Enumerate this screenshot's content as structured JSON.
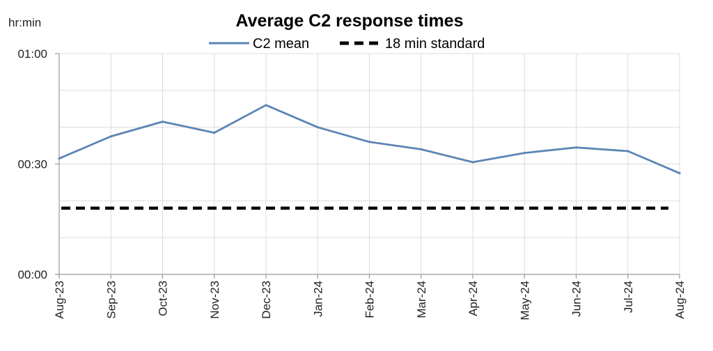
{
  "chart_data": {
    "type": "line",
    "title": "Average C2 response times",
    "ylabel": "hr:min",
    "xlabel": "",
    "categories": [
      "Aug-23",
      "Sep-23",
      "Oct-23",
      "Nov-23",
      "Dec-23",
      "Jan-24",
      "Feb-24",
      "Mar-24",
      "Apr-24",
      "May-24",
      "Jun-24",
      "Jul-24",
      "Aug-24"
    ],
    "ylim": [
      0,
      60
    ],
    "yticks": [
      {
        "value": 0,
        "label": "00:00"
      },
      {
        "value": 30,
        "label": "00:30"
      },
      {
        "value": 60,
        "label": "01:00"
      }
    ],
    "grid": true,
    "legend_position": "top-center",
    "series": [
      {
        "name": "C2 mean",
        "style": "solid",
        "color": "#5b85b5",
        "values": [
          31.5,
          37.5,
          41.5,
          38.5,
          46,
          40,
          36,
          34,
          30.5,
          33,
          34.5,
          33.5,
          27.5
        ]
      },
      {
        "name": "18 min standard",
        "style": "dashed",
        "color": "#000000",
        "values": [
          18,
          18,
          18,
          18,
          18,
          18,
          18,
          18,
          18,
          18,
          18,
          18,
          18
        ]
      }
    ]
  }
}
